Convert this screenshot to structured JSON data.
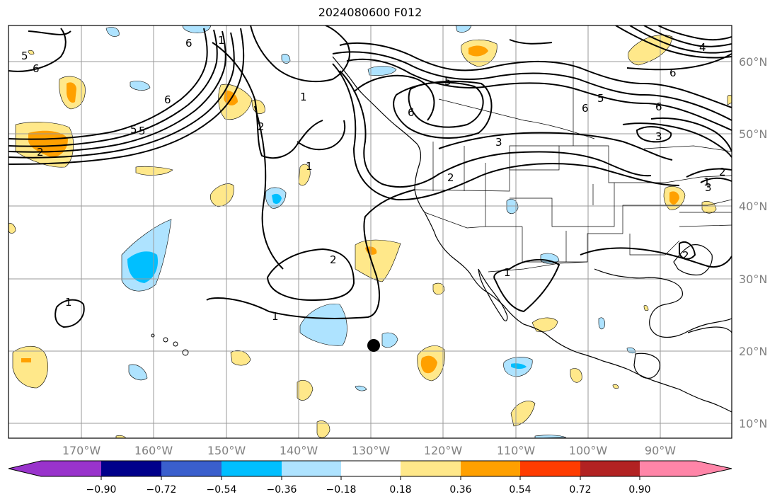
{
  "title": "2024080600 F012",
  "lon_labels": [
    "170°W",
    "160°W",
    "150°W",
    "140°W",
    "130°W",
    "120°W",
    "110°W",
    "100°W",
    "90°W"
  ],
  "lat_labels": [
    "60°N",
    "50°N",
    "40°N",
    "30°N",
    "20°N",
    "10°N"
  ],
  "colorbar": {
    "colors": [
      "#9933cc",
      "#00008b",
      "#3a5fcd",
      "#00bfff",
      "#aee3ff",
      "#ffffff",
      "#ffe88a",
      "#ffa000",
      "#ff3c00",
      "#b22222",
      "#ff85a8"
    ],
    "tick_labels": [
      "−0.90",
      "−0.72",
      "−0.54",
      "−0.36",
      "−0.18",
      "0.18",
      "0.36",
      "0.54",
      "0.72",
      "0.90"
    ]
  },
  "contour_labels": [
    "5",
    "6",
    "6",
    "5",
    "5",
    "6",
    "1",
    "1",
    "2",
    "1",
    "5",
    "6",
    "6",
    "3",
    "3",
    "5",
    "6",
    "3",
    "6",
    "2",
    "1",
    "1",
    "2",
    "1",
    "1",
    "2",
    "2",
    "2",
    "4"
  ]
}
